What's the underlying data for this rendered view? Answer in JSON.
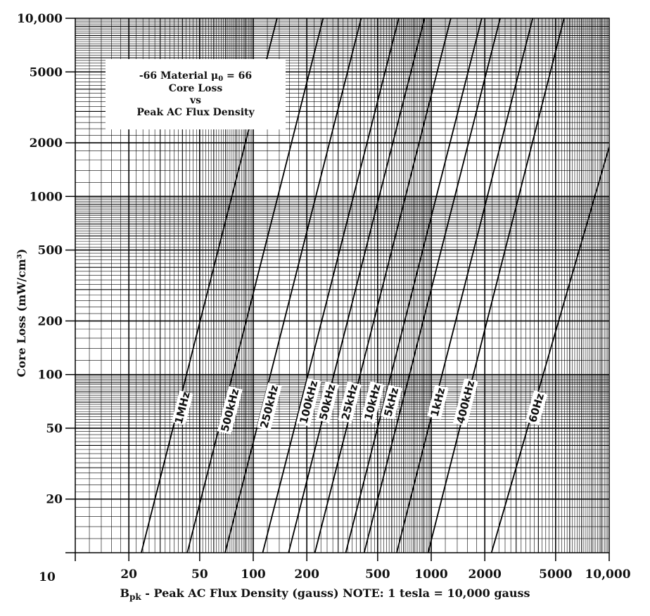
{
  "chart_data": {
    "type": "line",
    "title_line1": "-66 Material μ",
    "title_mu_sub": "0",
    "title_line1_suffix": " = 66",
    "title_line2": "Core Loss",
    "title_line3": "vs",
    "title_line4": "Peak AC Flux Density",
    "xlabel_prefix": "B",
    "xlabel_sub": "pk",
    "xlabel_rest": " - Peak AC Flux Density (gauss)   NOTE: 1 tesla = 10,000 gauss",
    "ylabel": "Core Loss (mW/cm³)",
    "x_scale": "log",
    "y_scale": "log",
    "xlim": [
      10,
      10000
    ],
    "ylim": [
      10,
      10000
    ],
    "grid": true,
    "x_ticks": [
      {
        "value": 10,
        "label": "10"
      },
      {
        "value": 20,
        "label": "20"
      },
      {
        "value": 50,
        "label": "50"
      },
      {
        "value": 100,
        "label": "100"
      },
      {
        "value": 200,
        "label": "200"
      },
      {
        "value": 500,
        "label": "500"
      },
      {
        "value": 1000,
        "label": "1000"
      },
      {
        "value": 2000,
        "label": "2000"
      },
      {
        "value": 5000,
        "label": "5000"
      },
      {
        "value": 10000,
        "label": "10,000"
      }
    ],
    "y_ticks": [
      {
        "value": 20,
        "label": "20"
      },
      {
        "value": 50,
        "label": "50"
      },
      {
        "value": 100,
        "label": "100"
      },
      {
        "value": 200,
        "label": "200"
      },
      {
        "value": 500,
        "label": "500"
      },
      {
        "value": 1000,
        "label": "1000"
      },
      {
        "value": 2000,
        "label": "2000"
      },
      {
        "value": 5000,
        "label": "5000"
      },
      {
        "value": 10000,
        "label": "10,000"
      }
    ],
    "series": [
      {
        "name": "1MHz",
        "x": [
          23.5,
          136
        ],
        "y": [
          10,
          10000
        ],
        "label_at": [
          40,
          65
        ]
      },
      {
        "name": "500kHz",
        "x": [
          42.6,
          247
        ],
        "y": [
          10,
          10000
        ],
        "label_at": [
          74,
          63
        ]
      },
      {
        "name": "250kHz",
        "x": [
          69.5,
          404
        ],
        "y": [
          10,
          10000
        ],
        "label_at": [
          123,
          66
        ]
      },
      {
        "name": "100kHz",
        "x": [
          113,
          657
        ],
        "y": [
          10,
          10000
        ],
        "label_at": [
          205,
          70
        ]
      },
      {
        "name": "50kHz",
        "x": [
          158,
          917
        ],
        "y": [
          10,
          10000
        ],
        "label_at": [
          261,
          70
        ]
      },
      {
        "name": "25kHz",
        "x": [
          222,
          1288
        ],
        "y": [
          10,
          10000
        ],
        "label_at": [
          348,
          70
        ]
      },
      {
        "name": "10kHz",
        "x": [
          331,
          1922
        ],
        "y": [
          10,
          10000
        ],
        "label_at": [
          468,
          70
        ]
      },
      {
        "name": "5kHz",
        "x": [
          420,
          2440
        ],
        "y": [
          10,
          10000
        ],
        "label_at": [
          597,
          70
        ]
      },
      {
        "name": "1kHz",
        "x": [
          640,
          3715
        ],
        "y": [
          10,
          10000
        ],
        "label_at": [
          1090,
          70
        ]
      },
      {
        "name": "400kHz",
        "x": [
          960,
          5575
        ],
        "y": [
          10,
          10000
        ],
        "label_at": [
          1560,
          70
        ]
      },
      {
        "name": "60Hz",
        "x": [
          2180,
          10000
        ],
        "y": [
          10,
          1900
        ],
        "label_at": [
          3900,
          65
        ]
      }
    ]
  }
}
